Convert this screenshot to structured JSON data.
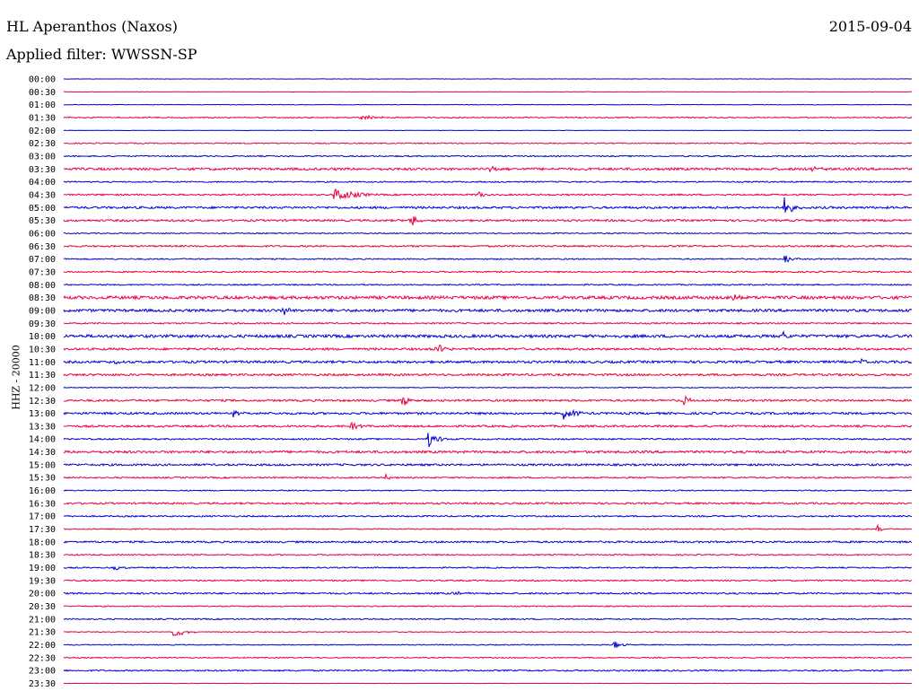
{
  "header": {
    "station": "HL Aperanthos (Naxos)",
    "date": "2015-09-04",
    "filter": "Applied filter: WWSSN-SP"
  },
  "colors": {
    "even_trace": "#0000cc",
    "odd_trace": "#e8003d"
  },
  "chart_data": {
    "type": "line",
    "title": "HL Aperanthos (Naxos)",
    "subtitle": "Applied filter: WWSSN-SP",
    "date": "2015-09-04",
    "ylabel": "HHZ - 20000",
    "xlabel": "",
    "tick_labels": [
      "00:00",
      "00:30",
      "01:00",
      "01:30",
      "02:00",
      "02:30",
      "03:00",
      "03:30",
      "04:00",
      "04:30",
      "05:00",
      "05:30",
      "06:00",
      "06:30",
      "07:00",
      "07:30",
      "08:00",
      "08:30",
      "09:00",
      "09:30",
      "10:00",
      "10:30",
      "11:00",
      "11:30",
      "12:00",
      "12:30",
      "13:00",
      "13:30",
      "14:00",
      "14:30",
      "15:00",
      "15:30",
      "16:00",
      "16:30",
      "17:00",
      "17:30",
      "18:00",
      "18:30",
      "19:00",
      "19:30",
      "20:00",
      "20:30",
      "21:00",
      "21:30",
      "22:00",
      "22:30",
      "23:00",
      "23:30"
    ],
    "trace_noise": [
      0.2,
      0.2,
      0.3,
      0.6,
      0.2,
      0.6,
      0.7,
      1.3,
      0.7,
      0.9,
      1.2,
      1.1,
      0.6,
      0.9,
      0.7,
      0.8,
      0.7,
      1.7,
      1.5,
      0.8,
      1.6,
      1.2,
      1.3,
      1.2,
      0.5,
      1.1,
      1.2,
      1.1,
      0.8,
      1.3,
      1.1,
      0.8,
      0.6,
      1.0,
      0.8,
      0.6,
      1.0,
      0.7,
      0.7,
      0.8,
      0.9,
      0.6,
      0.7,
      0.5,
      0.5,
      0.6,
      0.8,
      0.2
    ],
    "events": [
      {
        "trace": 3,
        "t": 0.35,
        "amp": 3,
        "dur": 0.05
      },
      {
        "trace": 7,
        "t": 0.5,
        "amp": 4,
        "dur": 0.03
      },
      {
        "trace": 7,
        "t": 0.88,
        "amp": 3,
        "dur": 0.04
      },
      {
        "trace": 9,
        "t": 0.32,
        "amp": 10,
        "dur": 0.05
      },
      {
        "trace": 9,
        "t": 0.49,
        "amp": 7,
        "dur": 0.01
      },
      {
        "trace": 10,
        "t": 0.85,
        "amp": 12,
        "dur": 0.02
      },
      {
        "trace": 11,
        "t": 0.41,
        "amp": 8,
        "dur": 0.02
      },
      {
        "trace": 14,
        "t": 0.85,
        "amp": 6,
        "dur": 0.02
      },
      {
        "trace": 17,
        "t": 0.79,
        "amp": 6,
        "dur": 0.02
      },
      {
        "trace": 18,
        "t": 0.26,
        "amp": 7,
        "dur": 0.01
      },
      {
        "trace": 20,
        "t": 0.85,
        "amp": 9,
        "dur": 0.01
      },
      {
        "trace": 21,
        "t": 0.44,
        "amp": 8,
        "dur": 0.02
      },
      {
        "trace": 22,
        "t": 0.06,
        "amp": 6,
        "dur": 0.01
      },
      {
        "trace": 22,
        "t": 0.94,
        "amp": 6,
        "dur": 0.01
      },
      {
        "trace": 25,
        "t": 0.4,
        "amp": 8,
        "dur": 0.02
      },
      {
        "trace": 25,
        "t": 0.73,
        "amp": 6,
        "dur": 0.02
      },
      {
        "trace": 26,
        "t": 0.2,
        "amp": 6,
        "dur": 0.01
      },
      {
        "trace": 26,
        "t": 0.59,
        "amp": 8,
        "dur": 0.03
      },
      {
        "trace": 27,
        "t": 0.34,
        "amp": 5,
        "dur": 0.02
      },
      {
        "trace": 28,
        "t": 0.43,
        "amp": 9,
        "dur": 0.03
      },
      {
        "trace": 31,
        "t": 0.38,
        "amp": 5,
        "dur": 0.01
      },
      {
        "trace": 35,
        "t": 0.96,
        "amp": 5,
        "dur": 0.01
      },
      {
        "trace": 38,
        "t": 0.06,
        "amp": 4,
        "dur": 0.02
      },
      {
        "trace": 40,
        "t": 0.46,
        "amp": 4,
        "dur": 0.02
      },
      {
        "trace": 43,
        "t": 0.13,
        "amp": 7,
        "dur": 0.03
      },
      {
        "trace": 44,
        "t": 0.65,
        "amp": 5,
        "dur": 0.02
      }
    ]
  }
}
